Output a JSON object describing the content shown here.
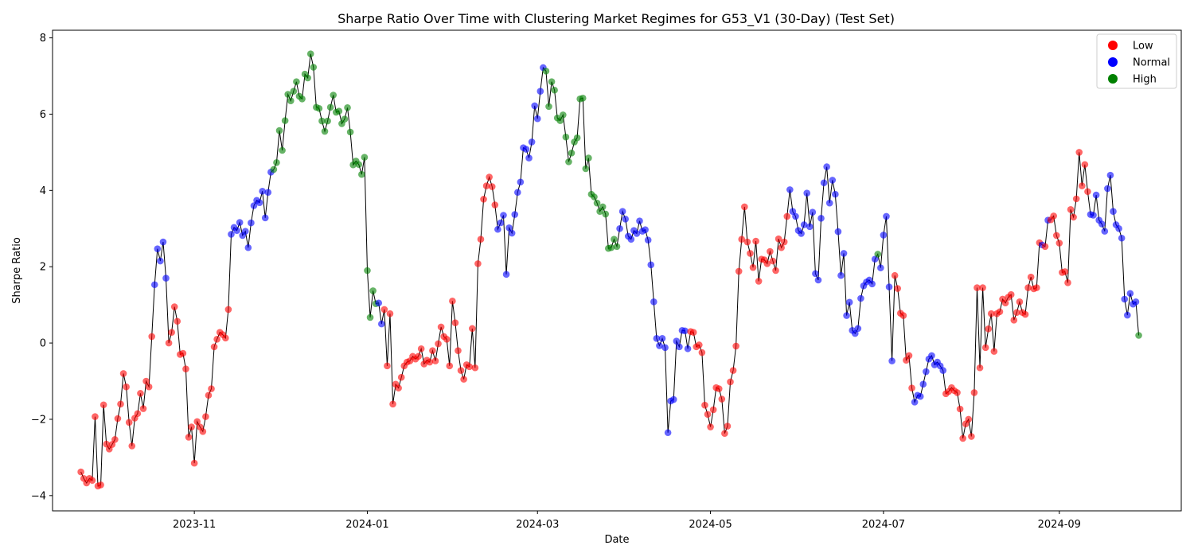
{
  "chart_data": {
    "type": "scatter",
    "title": "Sharpe Ratio Over Time with Clustering Market Regimes for G53_V1 (30-Day) (Test Set)",
    "xlabel": "Date",
    "ylabel": "Sharpe Ratio",
    "xlim": [
      "2023-09-12",
      "2024-10-14"
    ],
    "ylim": [
      -4.4,
      8.2
    ],
    "x_ticks": [
      "2023-11-01",
      "2024-01-01",
      "2024-03-01",
      "2024-05-01",
      "2024-07-01",
      "2024-09-01"
    ],
    "x_tick_labels": [
      "2023-11",
      "2024-01",
      "2024-03",
      "2024-05",
      "2024-07",
      "2024-09"
    ],
    "y_ticks": [
      -4,
      -2,
      0,
      2,
      4,
      6,
      8
    ],
    "y_tick_labels": [
      "−4",
      "−2",
      "0",
      "2",
      "4",
      "6",
      "8"
    ],
    "grid": false,
    "legend_position": "top-right",
    "legend": [
      {
        "name": "Low",
        "color": "#ff0000"
      },
      {
        "name": "Normal",
        "color": "#0000ff"
      },
      {
        "name": "High",
        "color": "#008000"
      }
    ],
    "line_color": "#000000",
    "regime_colors": {
      "L": "#ff0000",
      "N": "#0000ff",
      "H": "#008000"
    },
    "start_date": "2023-09-22",
    "values": [
      -3.38,
      -3.55,
      -3.67,
      -3.55,
      -3.6,
      -1.93,
      -3.75,
      -3.72,
      -1.62,
      -2.65,
      -2.78,
      -2.66,
      -2.53,
      -1.98,
      -1.6,
      -0.8,
      -1.15,
      -2.08,
      -2.7,
      -1.97,
      -1.85,
      -1.32,
      -1.72,
      -1.0,
      -1.15,
      0.17,
      1.53,
      2.47,
      2.15,
      2.65,
      1.7,
      0.0,
      0.28,
      0.95,
      0.57,
      -0.3,
      -0.27,
      -0.68,
      -2.47,
      -2.2,
      -3.15,
      -2.06,
      -2.2,
      -2.32,
      -1.93,
      -1.37,
      -1.2,
      -0.1,
      0.1,
      0.28,
      0.22,
      0.13,
      0.88,
      2.85,
      3.03,
      2.95,
      3.16,
      2.82,
      2.93,
      2.5,
      3.15,
      3.6,
      3.74,
      3.68,
      3.98,
      3.28,
      3.95,
      4.48,
      4.55,
      4.73,
      5.57,
      5.05,
      5.83,
      6.52,
      6.35,
      6.6,
      6.85,
      6.47,
      6.4,
      7.05,
      6.95,
      7.58,
      7.23,
      6.18,
      6.15,
      5.82,
      5.55,
      5.82,
      6.18,
      6.5,
      6.05,
      6.08,
      5.75,
      5.87,
      6.17,
      5.53,
      4.67,
      4.77,
      4.68,
      4.42,
      4.87,
      1.9,
      0.67,
      1.37,
      1.03,
      1.05,
      0.5,
      0.88,
      -0.6,
      0.77,
      -1.6,
      -1.08,
      -1.18,
      -0.9,
      -0.6,
      -0.5,
      -0.47,
      -0.35,
      -0.42,
      -0.35,
      -0.15,
      -0.55,
      -0.45,
      -0.5,
      -0.2,
      -0.47,
      -0.02,
      0.42,
      0.17,
      0.1,
      -0.6,
      1.1,
      0.53,
      -0.2,
      -0.72,
      -0.95,
      -0.57,
      -0.62,
      0.38,
      -0.65,
      2.08,
      2.72,
      3.77,
      4.12,
      4.35,
      4.1,
      3.62,
      2.98,
      3.15,
      3.35,
      1.8,
      3.02,
      2.88,
      3.37,
      3.95,
      4.22,
      5.12,
      5.08,
      4.85,
      5.27,
      6.22,
      5.88,
      6.6,
      7.22,
      7.13,
      6.2,
      6.85,
      6.63,
      5.9,
      5.83,
      5.98,
      5.4,
      4.75,
      4.98,
      5.27,
      5.38,
      6.4,
      6.42,
      4.57,
      4.85,
      3.9,
      3.83,
      3.67,
      3.45,
      3.57,
      3.38,
      2.48,
      2.5,
      2.72,
      2.53,
      3.0,
      3.45,
      3.25,
      2.8,
      2.72,
      2.95,
      2.87,
      3.2,
      2.93,
      2.97,
      2.7,
      2.05,
      1.08,
      0.12,
      -0.07,
      0.12,
      -0.12,
      -2.35,
      -1.52,
      -1.48,
      0.05,
      -0.1,
      0.33,
      0.32,
      -0.15,
      0.3,
      0.28,
      -0.1,
      -0.05,
      -0.25,
      -1.63,
      -1.87,
      -2.2,
      -1.75,
      -1.17,
      -1.2,
      -1.47,
      -2.37,
      -2.18,
      -1.02,
      -0.72,
      -0.08,
      1.88,
      2.72,
      3.57,
      2.65,
      2.35,
      1.98,
      2.67,
      1.62,
      2.2,
      2.18,
      2.08,
      2.4,
      2.15,
      1.9,
      2.73,
      2.5,
      2.65,
      3.32,
      4.02,
      3.45,
      3.32,
      2.95,
      2.87,
      3.1,
      3.93,
      3.05,
      3.43,
      1.82,
      1.65,
      3.27,
      4.2,
      4.62,
      3.67,
      4.27,
      3.9,
      2.92,
      1.77,
      2.35,
      0.72,
      1.07,
      0.33,
      0.25,
      0.38,
      1.17,
      1.5,
      1.6,
      1.65,
      1.55,
      2.2,
      2.33,
      1.97,
      2.83,
      3.32,
      1.47,
      -0.47,
      1.77,
      1.43,
      0.78,
      0.72,
      -0.45,
      -0.33,
      -1.18,
      -1.55,
      -1.37,
      -1.4,
      -1.08,
      -0.75,
      -0.42,
      -0.33,
      -0.57,
      -0.5,
      -0.6,
      -0.72,
      -1.33,
      -1.27,
      -1.17,
      -1.25,
      -1.3,
      -1.73,
      -2.5,
      -2.12,
      -2.0,
      -2.45,
      -1.3,
      1.45,
      -0.65,
      1.45,
      -0.12,
      0.37,
      0.77,
      -0.22,
      0.77,
      0.82,
      1.15,
      1.05,
      1.2,
      1.27,
      0.6,
      0.8,
      1.08,
      0.8,
      0.75,
      1.45,
      1.73,
      1.42,
      1.45,
      2.63,
      2.57,
      2.53,
      3.22,
      3.23,
      3.33,
      2.82,
      2.62,
      1.85,
      1.87,
      1.58,
      3.5,
      3.3,
      3.78,
      5.0,
      4.12,
      4.68,
      3.97,
      3.37,
      3.35,
      3.88,
      3.22,
      3.12,
      2.93,
      4.05,
      4.4,
      3.45,
      3.1,
      3.0,
      2.75,
      1.15,
      0.73,
      1.3,
      1.02,
      1.08,
      0.2
    ],
    "regimes": "LLLLLLLLLLLLLLLLLLLLLLLLLLNNNNNLLLLLLLLLLLLLLLLLLLLLLNNNNNNNNNNNNNNNHHHHHHHHHHHHHHHHHHHHHHHHHHHHHHHHHHHHHNNLLLLLLLLLLLLLLLLLLLLLLLLLLLLLLLLLLLLLLLLNNNNNNNNNNNNNNNNNHHHHHHHHHHHHHHHHHHHHHHHHHHNNNNNNNNNNNNNNNNNNNNNNNNNLLLLLLLLLLLLLLLLLLLLLLLLLLLLLLLLLLLNNNNNNNNNNNNNNNNNNNNNNNNNNNNNNNHNNNNNLLLLLLLNNNNNNNNNNNLLLLLLLLLLLLLLLLLLLLLLLLLLLLLLLLLLNLNLLLLLLLLLLLLLLNNNNNNNNNNNNNNNNNHNHNNNNNNNHNNNLLLLL"
  }
}
